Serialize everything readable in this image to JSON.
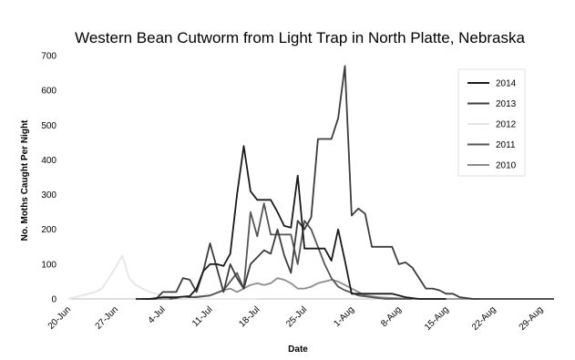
{
  "chart_data": {
    "type": "line",
    "title": "Western Bean Cutworm from Light Trap in North Platte, Nebraska",
    "xlabel": "Date",
    "ylabel": "No. Moths Caught Per Night",
    "ylim": [
      0,
      700
    ],
    "yticks": [
      0,
      100,
      200,
      300,
      400,
      500,
      600,
      700
    ],
    "x_range": [
      "2000-06-20",
      "2000-08-31"
    ],
    "x_ticks": [
      {
        "date": "2000-06-20",
        "label": "20-Jun"
      },
      {
        "date": "2000-06-27",
        "label": "27-Jun"
      },
      {
        "date": "2000-07-04",
        "label": "4-Jul"
      },
      {
        "date": "2000-07-11",
        "label": "11-Jul"
      },
      {
        "date": "2000-07-18",
        "label": "18-Jul"
      },
      {
        "date": "2000-07-25",
        "label": "25-Jul"
      },
      {
        "date": "2000-08-01",
        "label": "1-Aug"
      },
      {
        "date": "2000-08-08",
        "label": "8-Aug"
      },
      {
        "date": "2000-08-15",
        "label": "15-Aug"
      },
      {
        "date": "2000-08-22",
        "label": "22-Aug"
      },
      {
        "date": "2000-08-29",
        "label": "29-Aug"
      }
    ],
    "grid": false,
    "legend_position": "top-right",
    "series": [
      {
        "name": "2014",
        "color": "#1a1a1a",
        "points": [
          [
            "2000-06-30",
            0
          ],
          [
            "2000-07-02",
            0
          ],
          [
            "2000-07-04",
            5
          ],
          [
            "2000-07-06",
            5
          ],
          [
            "2000-07-08",
            8
          ],
          [
            "2000-07-09",
            30
          ],
          [
            "2000-07-10",
            80
          ],
          [
            "2000-07-11",
            100
          ],
          [
            "2000-07-12",
            100
          ],
          [
            "2000-07-13",
            95
          ],
          [
            "2000-07-14",
            130
          ],
          [
            "2000-07-15",
            300
          ],
          [
            "2000-07-16",
            440
          ],
          [
            "2000-07-17",
            310
          ],
          [
            "2000-07-18",
            285
          ],
          [
            "2000-07-19",
            285
          ],
          [
            "2000-07-20",
            285
          ],
          [
            "2000-07-21",
            250
          ],
          [
            "2000-07-22",
            210
          ],
          [
            "2000-07-23",
            205
          ],
          [
            "2000-07-24",
            355
          ],
          [
            "2000-07-25",
            145
          ],
          [
            "2000-07-26",
            145
          ],
          [
            "2000-07-27",
            145
          ],
          [
            "2000-07-28",
            145
          ],
          [
            "2000-07-29",
            110
          ],
          [
            "2000-07-30",
            200
          ],
          [
            "2000-07-31",
            110
          ],
          [
            "2000-08-01",
            15
          ],
          [
            "2000-08-03",
            15
          ],
          [
            "2000-08-05",
            15
          ],
          [
            "2000-08-07",
            15
          ],
          [
            "2000-08-09",
            5
          ],
          [
            "2000-08-11",
            0
          ],
          [
            "2000-08-15",
            0
          ]
        ]
      },
      {
        "name": "2013",
        "color": "#3c3c3c",
        "points": [
          [
            "2000-07-01",
            0
          ],
          [
            "2000-07-03",
            0
          ],
          [
            "2000-07-04",
            20
          ],
          [
            "2000-07-06",
            20
          ],
          [
            "2000-07-07",
            60
          ],
          [
            "2000-07-08",
            55
          ],
          [
            "2000-07-09",
            20
          ],
          [
            "2000-07-10",
            80
          ],
          [
            "2000-07-11",
            160
          ],
          [
            "2000-07-12",
            90
          ],
          [
            "2000-07-13",
            20
          ],
          [
            "2000-07-14",
            100
          ],
          [
            "2000-07-15",
            60
          ],
          [
            "2000-07-16",
            30
          ],
          [
            "2000-07-17",
            100
          ],
          [
            "2000-07-18",
            120
          ],
          [
            "2000-07-19",
            140
          ],
          [
            "2000-07-20",
            130
          ],
          [
            "2000-07-21",
            200
          ],
          [
            "2000-07-22",
            125
          ],
          [
            "2000-07-23",
            75
          ],
          [
            "2000-07-24",
            225
          ],
          [
            "2000-07-25",
            200
          ],
          [
            "2000-07-26",
            235
          ],
          [
            "2000-07-27",
            460
          ],
          [
            "2000-07-28",
            460
          ],
          [
            "2000-07-29",
            460
          ],
          [
            "2000-07-30",
            520
          ],
          [
            "2000-07-31",
            670
          ],
          [
            "2000-08-01",
            240
          ],
          [
            "2000-08-02",
            260
          ],
          [
            "2000-08-03",
            245
          ],
          [
            "2000-08-04",
            150
          ],
          [
            "2000-08-05",
            150
          ],
          [
            "2000-08-06",
            150
          ],
          [
            "2000-08-07",
            150
          ],
          [
            "2000-08-08",
            100
          ],
          [
            "2000-08-09",
            105
          ],
          [
            "2000-08-10",
            90
          ],
          [
            "2000-08-11",
            60
          ],
          [
            "2000-08-12",
            30
          ],
          [
            "2000-08-13",
            30
          ],
          [
            "2000-08-14",
            25
          ],
          [
            "2000-08-15",
            15
          ],
          [
            "2000-08-16",
            15
          ],
          [
            "2000-08-17",
            5
          ],
          [
            "2000-08-19",
            0
          ],
          [
            "2000-08-31",
            0
          ]
        ]
      },
      {
        "name": "2012",
        "color": "#e6e6e6",
        "points": [
          [
            "2000-06-20",
            0
          ],
          [
            "2000-06-22",
            10
          ],
          [
            "2000-06-24",
            20
          ],
          [
            "2000-06-25",
            30
          ],
          [
            "2000-06-26",
            60
          ],
          [
            "2000-06-27",
            90
          ],
          [
            "2000-06-28",
            125
          ],
          [
            "2000-06-29",
            60
          ],
          [
            "2000-06-30",
            40
          ],
          [
            "2000-07-01",
            30
          ],
          [
            "2000-07-02",
            20
          ],
          [
            "2000-07-03",
            15
          ],
          [
            "2000-07-04",
            10
          ],
          [
            "2000-07-06",
            5
          ],
          [
            "2000-07-08",
            0
          ],
          [
            "2000-07-18",
            0
          ]
        ]
      },
      {
        "name": "2011",
        "color": "#555555",
        "points": [
          [
            "2000-07-05",
            0
          ],
          [
            "2000-07-07",
            5
          ],
          [
            "2000-07-09",
            5
          ],
          [
            "2000-07-11",
            10
          ],
          [
            "2000-07-13",
            25
          ],
          [
            "2000-07-14",
            50
          ],
          [
            "2000-07-15",
            75
          ],
          [
            "2000-07-16",
            30
          ],
          [
            "2000-07-17",
            250
          ],
          [
            "2000-07-18",
            180
          ],
          [
            "2000-07-19",
            275
          ],
          [
            "2000-07-20",
            185
          ],
          [
            "2000-07-21",
            185
          ],
          [
            "2000-07-22",
            185
          ],
          [
            "2000-07-23",
            185
          ],
          [
            "2000-07-24",
            100
          ],
          [
            "2000-07-25",
            225
          ],
          [
            "2000-07-26",
            200
          ],
          [
            "2000-07-27",
            150
          ],
          [
            "2000-07-28",
            100
          ],
          [
            "2000-07-29",
            60
          ],
          [
            "2000-07-30",
            35
          ],
          [
            "2000-07-31",
            25
          ],
          [
            "2000-08-02",
            10
          ],
          [
            "2000-08-04",
            5
          ],
          [
            "2000-08-06",
            0
          ],
          [
            "2000-08-10",
            0
          ]
        ]
      },
      {
        "name": "2010",
        "color": "#8c8c8c",
        "points": [
          [
            "2000-07-02",
            0
          ],
          [
            "2000-07-05",
            0
          ],
          [
            "2000-07-08",
            5
          ],
          [
            "2000-07-11",
            10
          ],
          [
            "2000-07-13",
            25
          ],
          [
            "2000-07-14",
            30
          ],
          [
            "2000-07-15",
            20
          ],
          [
            "2000-07-17",
            40
          ],
          [
            "2000-07-18",
            45
          ],
          [
            "2000-07-19",
            40
          ],
          [
            "2000-07-20",
            45
          ],
          [
            "2000-07-21",
            60
          ],
          [
            "2000-07-22",
            55
          ],
          [
            "2000-07-23",
            45
          ],
          [
            "2000-07-24",
            30
          ],
          [
            "2000-07-25",
            30
          ],
          [
            "2000-07-26",
            35
          ],
          [
            "2000-07-27",
            45
          ],
          [
            "2000-07-28",
            50
          ],
          [
            "2000-07-29",
            55
          ],
          [
            "2000-07-30",
            50
          ],
          [
            "2000-07-31",
            40
          ],
          [
            "2000-08-01",
            30
          ],
          [
            "2000-08-02",
            20
          ],
          [
            "2000-08-03",
            10
          ],
          [
            "2000-08-05",
            5
          ],
          [
            "2000-08-10",
            0
          ],
          [
            "2000-08-20",
            0
          ]
        ]
      }
    ]
  }
}
